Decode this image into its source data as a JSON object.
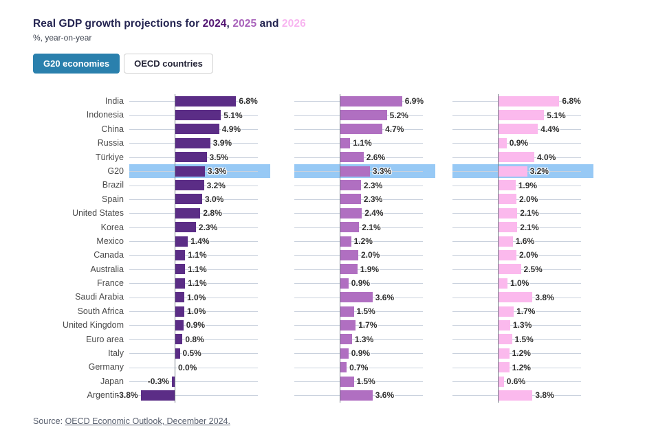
{
  "title": {
    "prefix": "Real GDP growth projections for ",
    "year1": "2024",
    "sep_comma": ", ",
    "year2": "2025",
    "sep_and": " and ",
    "year3": "2026",
    "year1_color": "#521472",
    "year2_color": "#a963bb",
    "year3_color": "#f8b5f0"
  },
  "subtitle": "%, year-on-year",
  "toggles": [
    {
      "label": "G20 economies",
      "active": true
    },
    {
      "label": "OECD countries",
      "active": false
    }
  ],
  "source": {
    "prefix": "Source: ",
    "link_text": "OECD Economic Outlook, December 2024."
  },
  "chart_data": {
    "type": "bar",
    "orientation": "horizontal",
    "value_suffix": "%",
    "grid": true,
    "xlim": [
      -5,
      10.5
    ],
    "highlight_category": "G20",
    "highlight_color": "#97c9f5",
    "categories": [
      "India",
      "Indonesia",
      "China",
      "Russia",
      "Türkiye",
      "G20",
      "Brazil",
      "Spain",
      "United States",
      "Korea",
      "Mexico",
      "Canada",
      "Australia",
      "France",
      "Saudi Arabia",
      "South Africa",
      "United Kingdom",
      "Euro area",
      "Italy",
      "Germany",
      "Japan",
      "Argentina"
    ],
    "series": [
      {
        "name": "2024",
        "color": "#5b2d86",
        "values": [
          6.8,
          5.1,
          4.9,
          3.9,
          3.5,
          3.3,
          3.2,
          3.0,
          2.8,
          2.3,
          1.4,
          1.1,
          1.1,
          1.1,
          1.0,
          1.0,
          0.9,
          0.8,
          0.5,
          0.0,
          -0.3,
          -3.8
        ]
      },
      {
        "name": "2025",
        "color": "#b06fc1",
        "values": [
          6.9,
          5.2,
          4.7,
          1.1,
          2.6,
          3.3,
          2.3,
          2.3,
          2.4,
          2.1,
          1.2,
          2.0,
          1.9,
          0.9,
          3.6,
          1.5,
          1.7,
          1.3,
          0.9,
          0.7,
          1.5,
          3.6
        ]
      },
      {
        "name": "2026",
        "color": "#fbb9ed",
        "values": [
          6.8,
          5.1,
          4.4,
          0.9,
          4.0,
          3.2,
          1.9,
          2.0,
          2.1,
          2.1,
          1.6,
          2.0,
          2.5,
          1.0,
          3.8,
          1.7,
          1.3,
          1.5,
          1.2,
          1.2,
          0.6,
          3.8
        ]
      }
    ]
  }
}
